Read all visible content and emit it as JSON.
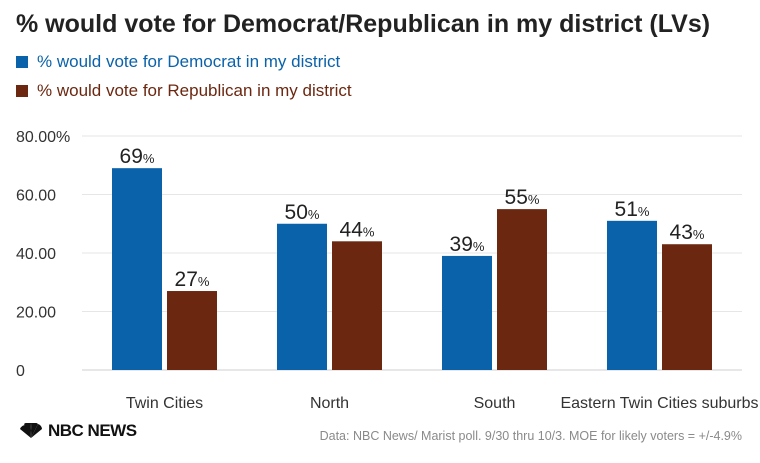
{
  "title": "% would vote for Democrat/Republican in my district (LVs)",
  "source": "Data: NBC News/ Marist poll. 9/30 thru 10/3. MOE for likely voters = +/-4.9%",
  "logo_text": "NBC NEWS",
  "colors": {
    "democrat": "#0a62aa",
    "republican": "#6b2710",
    "grid": "#e6e6e6"
  },
  "chart_data": {
    "type": "bar",
    "categories": [
      "Twin Cities",
      "North",
      "South",
      "Eastern Twin Cities suburbs"
    ],
    "series": [
      {
        "name": "% would vote for Democrat in my district",
        "values": [
          69,
          50,
          39,
          51
        ],
        "color": "#0a62aa"
      },
      {
        "name": "% would vote for Republican in my district",
        "values": [
          27,
          44,
          55,
          43
        ],
        "color": "#6b2710"
      }
    ],
    "y_ticks": [
      {
        "value": 0,
        "label": "0"
      },
      {
        "value": 20,
        "label": "20.00"
      },
      {
        "value": 40,
        "label": "40.00"
      },
      {
        "value": 60,
        "label": "60.00"
      },
      {
        "value": 80,
        "label": "80.00%"
      }
    ],
    "value_suffix": "%",
    "ylim": [
      0,
      80
    ],
    "grid": true,
    "legend_position": "top-left"
  }
}
